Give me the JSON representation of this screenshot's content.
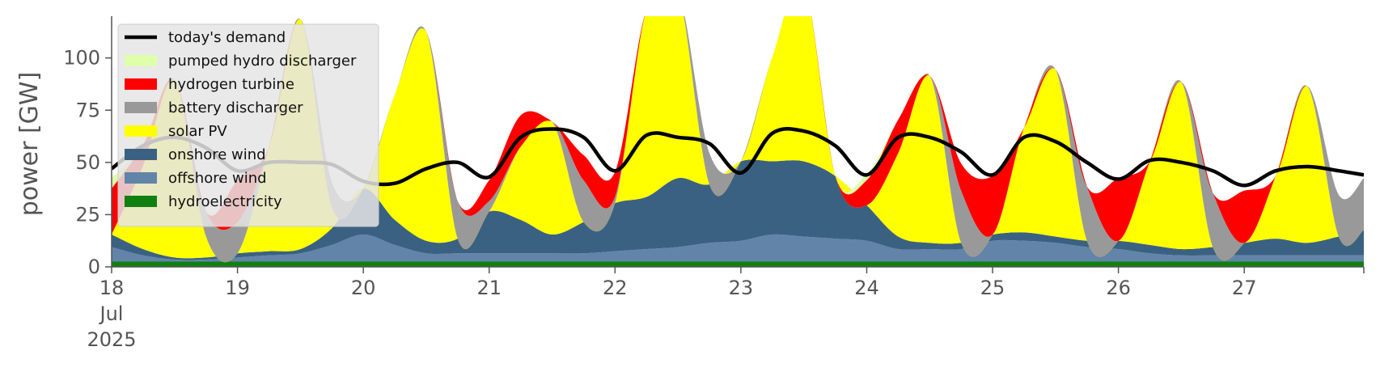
{
  "chart_data": {
    "type": "area",
    "ylabel": "power [GW]",
    "ylim": [
      0,
      120
    ],
    "yticks": [
      0,
      25,
      50,
      75,
      100
    ],
    "xlim": [
      18.0,
      27.95
    ],
    "xticks": [
      {
        "x": 18,
        "lines": [
          "18",
          "Jul",
          "2025"
        ]
      },
      {
        "x": 19,
        "lines": [
          "19"
        ]
      },
      {
        "x": 20,
        "lines": [
          "20"
        ]
      },
      {
        "x": 21,
        "lines": [
          "21"
        ]
      },
      {
        "x": 22,
        "lines": [
          "22"
        ]
      },
      {
        "x": 23,
        "lines": [
          "23"
        ]
      },
      {
        "x": 24,
        "lines": [
          "24"
        ]
      },
      {
        "x": 25,
        "lines": [
          "25"
        ]
      },
      {
        "x": 26,
        "lines": [
          "26"
        ]
      },
      {
        "x": 27,
        "lines": [
          "27"
        ]
      }
    ],
    "legend_placement": "top-left",
    "grid": false,
    "x": [
      18.0,
      18.25,
      18.5,
      18.75,
      19.0,
      19.25,
      19.5,
      19.75,
      20.0,
      20.25,
      20.5,
      20.75,
      21.0,
      21.25,
      21.5,
      21.75,
      22.0,
      22.25,
      22.5,
      22.75,
      23.0,
      23.25,
      23.5,
      23.75,
      24.0,
      24.25,
      24.5,
      24.75,
      25.0,
      25.25,
      25.5,
      25.75,
      26.0,
      26.25,
      26.5,
      26.75,
      27.0,
      27.25,
      27.5,
      27.75,
      27.95
    ],
    "demand": {
      "name": "today's demand",
      "color": "#000000",
      "values": [
        47,
        58,
        62,
        57,
        46,
        50,
        50,
        49,
        41,
        40,
        47,
        50,
        43,
        62,
        66,
        62,
        46,
        63,
        62,
        59,
        45,
        64,
        65,
        58,
        44,
        62,
        62,
        55,
        44,
        62,
        60,
        50,
        42,
        51,
        50,
        46,
        39,
        46,
        48,
        46,
        44
      ]
    },
    "series": [
      {
        "name": "hydroelectricity",
        "color": "#108010",
        "values": [
          2.5,
          2.5,
          2.5,
          2.5,
          2.5,
          2.5,
          2.5,
          2.5,
          2.5,
          2.5,
          2.5,
          2.5,
          2.5,
          2.5,
          2.5,
          2.5,
          2.5,
          2.5,
          2.5,
          2.5,
          2.5,
          2.5,
          2.5,
          2.5,
          2.5,
          2.5,
          2.5,
          2.5,
          2.5,
          2.5,
          2.5,
          2.5,
          2.5,
          2.5,
          2.5,
          2.5,
          2.5,
          2.5,
          2.5,
          2.5,
          2.5
        ]
      },
      {
        "name": "offshore wind",
        "color": "#6184a8",
        "values": [
          7,
          3,
          1,
          1,
          2,
          3,
          4,
          8,
          13,
          8,
          4,
          4,
          4,
          4,
          4,
          4,
          5,
          6,
          7,
          9,
          10,
          13,
          12,
          11,
          10,
          6,
          6,
          6,
          10,
          10,
          9,
          7,
          6,
          4,
          3,
          3,
          3,
          3,
          3,
          3,
          3
        ]
      },
      {
        "name": "onshore wind",
        "color": "#3b6182",
        "values": [
          6,
          3,
          1,
          1,
          2,
          2,
          2,
          8,
          22,
          12,
          6,
          7,
          20,
          16,
          9,
          15,
          23,
          25,
          33,
          28,
          38,
          35,
          36,
          30,
          17,
          6,
          3,
          3,
          3,
          4,
          3,
          3,
          4,
          4,
          3,
          4,
          6,
          8,
          6,
          9,
          12
        ]
      },
      {
        "name": "solar PV",
        "color": "#ffff00",
        "values": [
          0,
          40,
          85,
          10,
          0,
          50,
          110,
          10,
          0,
          60,
          100,
          0,
          0,
          35,
          54,
          0,
          0,
          90,
          90,
          0,
          0,
          50,
          85,
          0,
          0,
          40,
          80,
          0,
          0,
          50,
          80,
          0,
          0,
          40,
          80,
          0,
          0,
          30,
          75,
          0,
          0
        ]
      },
      {
        "name": "battery discharger",
        "color": "#999999",
        "values": [
          0,
          0,
          0,
          12,
          15,
          0,
          0,
          12,
          0,
          0,
          0,
          18,
          5,
          0,
          0,
          20,
          3,
          0,
          0,
          15,
          0,
          0,
          0,
          0,
          0,
          0,
          0,
          25,
          0,
          0,
          0,
          26,
          0,
          0,
          0,
          26,
          0,
          0,
          0,
          20,
          25
        ]
      },
      {
        "name": "hydrogen turbine",
        "color": "#ff0000",
        "values": [
          22,
          10,
          0,
          0,
          20,
          0,
          0,
          0,
          0,
          0,
          0,
          0,
          10,
          15,
          0,
          12,
          12,
          0,
          0,
          0,
          0,
          0,
          0,
          0,
          12,
          16,
          0,
          13,
          28,
          0,
          0,
          0,
          30,
          0,
          0,
          0,
          25,
          0,
          0,
          0,
          0
        ]
      },
      {
        "name": "pumped hydro discharger",
        "color": "#dfffaa",
        "values": [
          5,
          0,
          0,
          0,
          0,
          0,
          0,
          0,
          0,
          0,
          0,
          0,
          0,
          0,
          0,
          0,
          0,
          0,
          0,
          0,
          0,
          0,
          0,
          0,
          3,
          0,
          0,
          0,
          0,
          0,
          0,
          0,
          0,
          0,
          0,
          0,
          0,
          0,
          0,
          0,
          0
        ]
      }
    ],
    "legend": [
      {
        "label": "today's demand",
        "kind": "line",
        "color": "#000000"
      },
      {
        "label": "pumped hydro discharger",
        "kind": "patch",
        "color": "#dfffaa"
      },
      {
        "label": "hydrogen turbine",
        "kind": "patch",
        "color": "#ff0000"
      },
      {
        "label": "battery discharger",
        "kind": "patch",
        "color": "#999999"
      },
      {
        "label": "solar PV",
        "kind": "patch",
        "color": "#ffff00"
      },
      {
        "label": "onshore wind",
        "kind": "patch",
        "color": "#3b6182"
      },
      {
        "label": "offshore wind",
        "kind": "patch",
        "color": "#6184a8"
      },
      {
        "label": "hydroelectricity",
        "kind": "patch",
        "color": "#108010"
      }
    ]
  }
}
